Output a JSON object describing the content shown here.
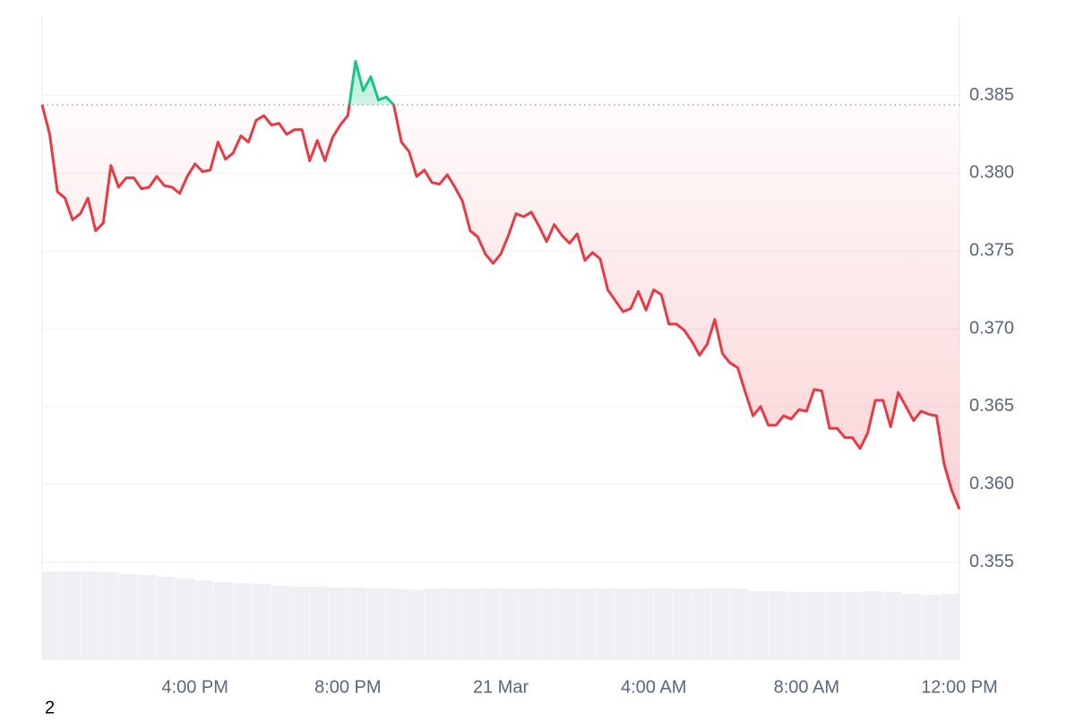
{
  "chart_data": {
    "type": "line",
    "x": [
      12,
      12.2,
      12.4,
      12.6,
      12.8,
      13,
      13.2,
      13.4,
      13.6,
      13.8,
      14,
      14.2,
      14.4,
      14.6,
      14.8,
      15,
      15.2,
      15.4,
      15.6,
      15.8,
      16,
      16.2,
      16.4,
      16.6,
      16.8,
      17,
      17.2,
      17.4,
      17.6,
      17.8,
      18,
      18.2,
      18.4,
      18.6,
      18.8,
      19,
      19.2,
      19.4,
      19.6,
      19.8,
      20,
      20.2,
      20.4,
      20.6,
      20.8,
      21,
      21.2,
      21.4,
      21.6,
      21.8,
      22,
      22.2,
      22.4,
      22.6,
      22.8,
      23,
      23.2,
      23.4,
      23.6,
      23.8,
      24,
      24.2,
      24.4,
      24.6,
      24.8,
      25,
      25.2,
      25.4,
      25.6,
      25.8,
      26,
      26.2,
      26.4,
      26.6,
      26.8,
      27,
      27.2,
      27.4,
      27.6,
      27.8,
      28,
      28.2,
      28.4,
      28.6,
      28.8,
      29,
      29.2,
      29.4,
      29.6,
      29.8,
      30,
      30.2,
      30.4,
      30.6,
      30.8,
      31,
      31.2,
      31.4,
      31.6,
      31.8,
      32,
      32.2,
      32.4,
      32.6,
      32.8,
      33,
      33.2,
      33.4,
      33.6,
      33.8,
      34,
      34.2,
      34.4,
      34.6,
      34.8,
      35,
      35.2,
      35.4,
      35.6,
      35.8,
      36
    ],
    "series": [
      {
        "up_color": "#16c784",
        "down_color": "#ea3943",
        "values": [
          0.3844,
          0.3825,
          0.3788,
          0.3784,
          0.377,
          0.3774,
          0.3784,
          0.3763,
          0.3768,
          0.3805,
          0.3791,
          0.3797,
          0.3797,
          0.379,
          0.3791,
          0.3798,
          0.3792,
          0.3791,
          0.3787,
          0.3798,
          0.3806,
          0.3801,
          0.3802,
          0.382,
          0.3809,
          0.3813,
          0.3824,
          0.382,
          0.3834,
          0.3837,
          0.3831,
          0.3832,
          0.3825,
          0.3828,
          0.3828,
          0.3808,
          0.3821,
          0.3808,
          0.3823,
          0.3831,
          0.3837,
          0.3872,
          0.3853,
          0.3862,
          0.3847,
          0.3849,
          0.3844,
          0.382,
          0.3814,
          0.3798,
          0.3802,
          0.3794,
          0.3793,
          0.3799,
          0.3791,
          0.3782,
          0.3763,
          0.3759,
          0.3748,
          0.3742,
          0.3748,
          0.376,
          0.3774,
          0.3772,
          0.3775,
          0.3766,
          0.3756,
          0.3767,
          0.376,
          0.3755,
          0.3761,
          0.3744,
          0.3749,
          0.3745,
          0.3725,
          0.3718,
          0.3711,
          0.3713,
          0.3724,
          0.3712,
          0.3725,
          0.3722,
          0.3703,
          0.3703,
          0.3699,
          0.3692,
          0.3683,
          0.369,
          0.3706,
          0.3684,
          0.3678,
          0.3675,
          0.3659,
          0.3644,
          0.365,
          0.3638,
          0.3638,
          0.3644,
          0.3642,
          0.3648,
          0.3647,
          0.3661,
          0.366,
          0.3636,
          0.3636,
          0.363,
          0.363,
          0.3623,
          0.3633,
          0.3654,
          0.3654,
          0.3637,
          0.3659,
          0.365,
          0.3641,
          0.3647,
          0.3645,
          0.3644,
          0.3613,
          0.3596,
          0.3584
        ]
      }
    ],
    "baseline": 0.3844,
    "volume": {
      "color": "#eef0f4",
      "values": [
        99,
        99,
        99,
        98,
        96,
        95,
        93,
        91,
        89,
        87,
        86,
        85,
        83,
        82,
        82,
        81,
        81,
        80,
        80,
        79,
        80,
        80,
        80,
        80,
        80,
        80,
        80,
        80,
        80,
        80,
        80,
        80,
        80,
        80,
        80,
        80,
        80,
        77,
        77,
        76,
        76,
        76,
        76,
        77,
        76,
        74,
        73,
        74
      ]
    },
    "xlim": [
      12,
      36
    ],
    "xticks": [
      {
        "value": 16,
        "label": "4:00 PM"
      },
      {
        "value": 20,
        "label": "8:00 PM"
      },
      {
        "value": 24,
        "label": "21 Mar"
      },
      {
        "value": 28,
        "label": "4:00 AM"
      },
      {
        "value": 32,
        "label": "8:00 AM"
      },
      {
        "value": 36,
        "label": "12:00 PM"
      }
    ],
    "ylim": [
      0.3487,
      0.3901
    ],
    "yticks": [
      0.355,
      {
        "value": 0.36,
        "label": "0.360"
      },
      0.365,
      {
        "value": 0.37,
        "label": "0.370"
      },
      0.375,
      {
        "value": 0.38,
        "label": "0.380"
      },
      0.385
    ],
    "grid": true,
    "note": "2"
  }
}
